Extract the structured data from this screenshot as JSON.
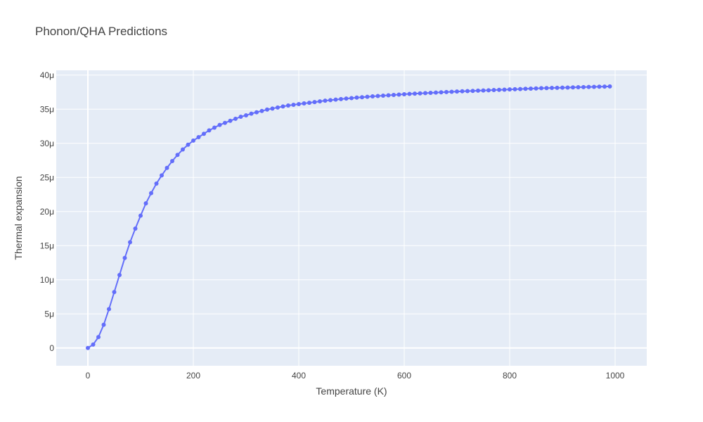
{
  "chart_data": {
    "type": "line",
    "title": "Phonon/QHA Predictions",
    "xlabel": "Temperature (K)",
    "ylabel": "Thermal expansion",
    "xlim": [
      -60,
      1060
    ],
    "ylim": [
      -2.6,
      40.7
    ],
    "xticks": [
      0,
      200,
      400,
      600,
      800,
      1000
    ],
    "xtick_labels": [
      "0",
      "200",
      "400",
      "600",
      "800",
      "1000"
    ],
    "yticks": [
      0,
      5,
      10,
      15,
      20,
      25,
      30,
      35,
      40
    ],
    "ytick_labels": [
      "0",
      "5μ",
      "10μ",
      "15μ",
      "20μ",
      "25μ",
      "30μ",
      "35μ",
      "40μ"
    ],
    "y_unit_note": "values in units of 1e-6 (μ)",
    "grid": true,
    "colors": {
      "line": "#636efa",
      "plot_bg": "#e5ecf6",
      "grid": "#ffffff"
    },
    "series": [
      {
        "mode": "lines+markers",
        "x": [
          0,
          10,
          20,
          30,
          40,
          50,
          60,
          70,
          80,
          90,
          100,
          110,
          120,
          130,
          140,
          150,
          160,
          170,
          180,
          190,
          200,
          210,
          220,
          230,
          240,
          250,
          260,
          270,
          280,
          290,
          300,
          310,
          320,
          330,
          340,
          350,
          360,
          370,
          380,
          390,
          400,
          410,
          420,
          430,
          440,
          450,
          460,
          470,
          480,
          490,
          500,
          510,
          520,
          530,
          540,
          550,
          560,
          570,
          580,
          590,
          600,
          610,
          620,
          630,
          640,
          650,
          660,
          670,
          680,
          690,
          700,
          710,
          720,
          730,
          740,
          750,
          760,
          770,
          780,
          790,
          800,
          810,
          820,
          830,
          840,
          850,
          860,
          870,
          880,
          890,
          900,
          910,
          920,
          930,
          940,
          950,
          960,
          970,
          980,
          990
        ],
        "y": [
          0,
          0.5,
          1.6,
          3.4,
          5.7,
          8.2,
          10.7,
          13.2,
          15.5,
          17.5,
          19.4,
          21.2,
          22.7,
          24.1,
          25.3,
          26.4,
          27.4,
          28.3,
          29.1,
          29.8,
          30.4,
          30.9,
          31.4,
          31.9,
          32.3,
          32.7,
          33.0,
          33.3,
          33.6,
          33.9,
          34.1,
          34.35,
          34.55,
          34.75,
          34.95,
          35.1,
          35.25,
          35.4,
          35.55,
          35.65,
          35.75,
          35.85,
          35.95,
          36.05,
          36.15,
          36.25,
          36.33,
          36.41,
          36.49,
          36.56,
          36.63,
          36.7,
          36.76,
          36.82,
          36.88,
          36.94,
          36.99,
          37.04,
          37.09,
          37.14,
          37.19,
          37.24,
          37.28,
          37.32,
          37.36,
          37.4,
          37.44,
          37.48,
          37.52,
          37.56,
          37.6,
          37.63,
          37.66,
          37.69,
          37.72,
          37.75,
          37.78,
          37.81,
          37.84,
          37.87,
          37.9,
          37.93,
          37.96,
          37.99,
          38.02,
          38.05,
          38.08,
          38.1,
          38.12,
          38.14,
          38.16,
          38.18,
          38.2,
          38.22,
          38.24,
          38.26,
          38.28,
          38.3,
          38.32,
          38.34
        ]
      }
    ]
  }
}
